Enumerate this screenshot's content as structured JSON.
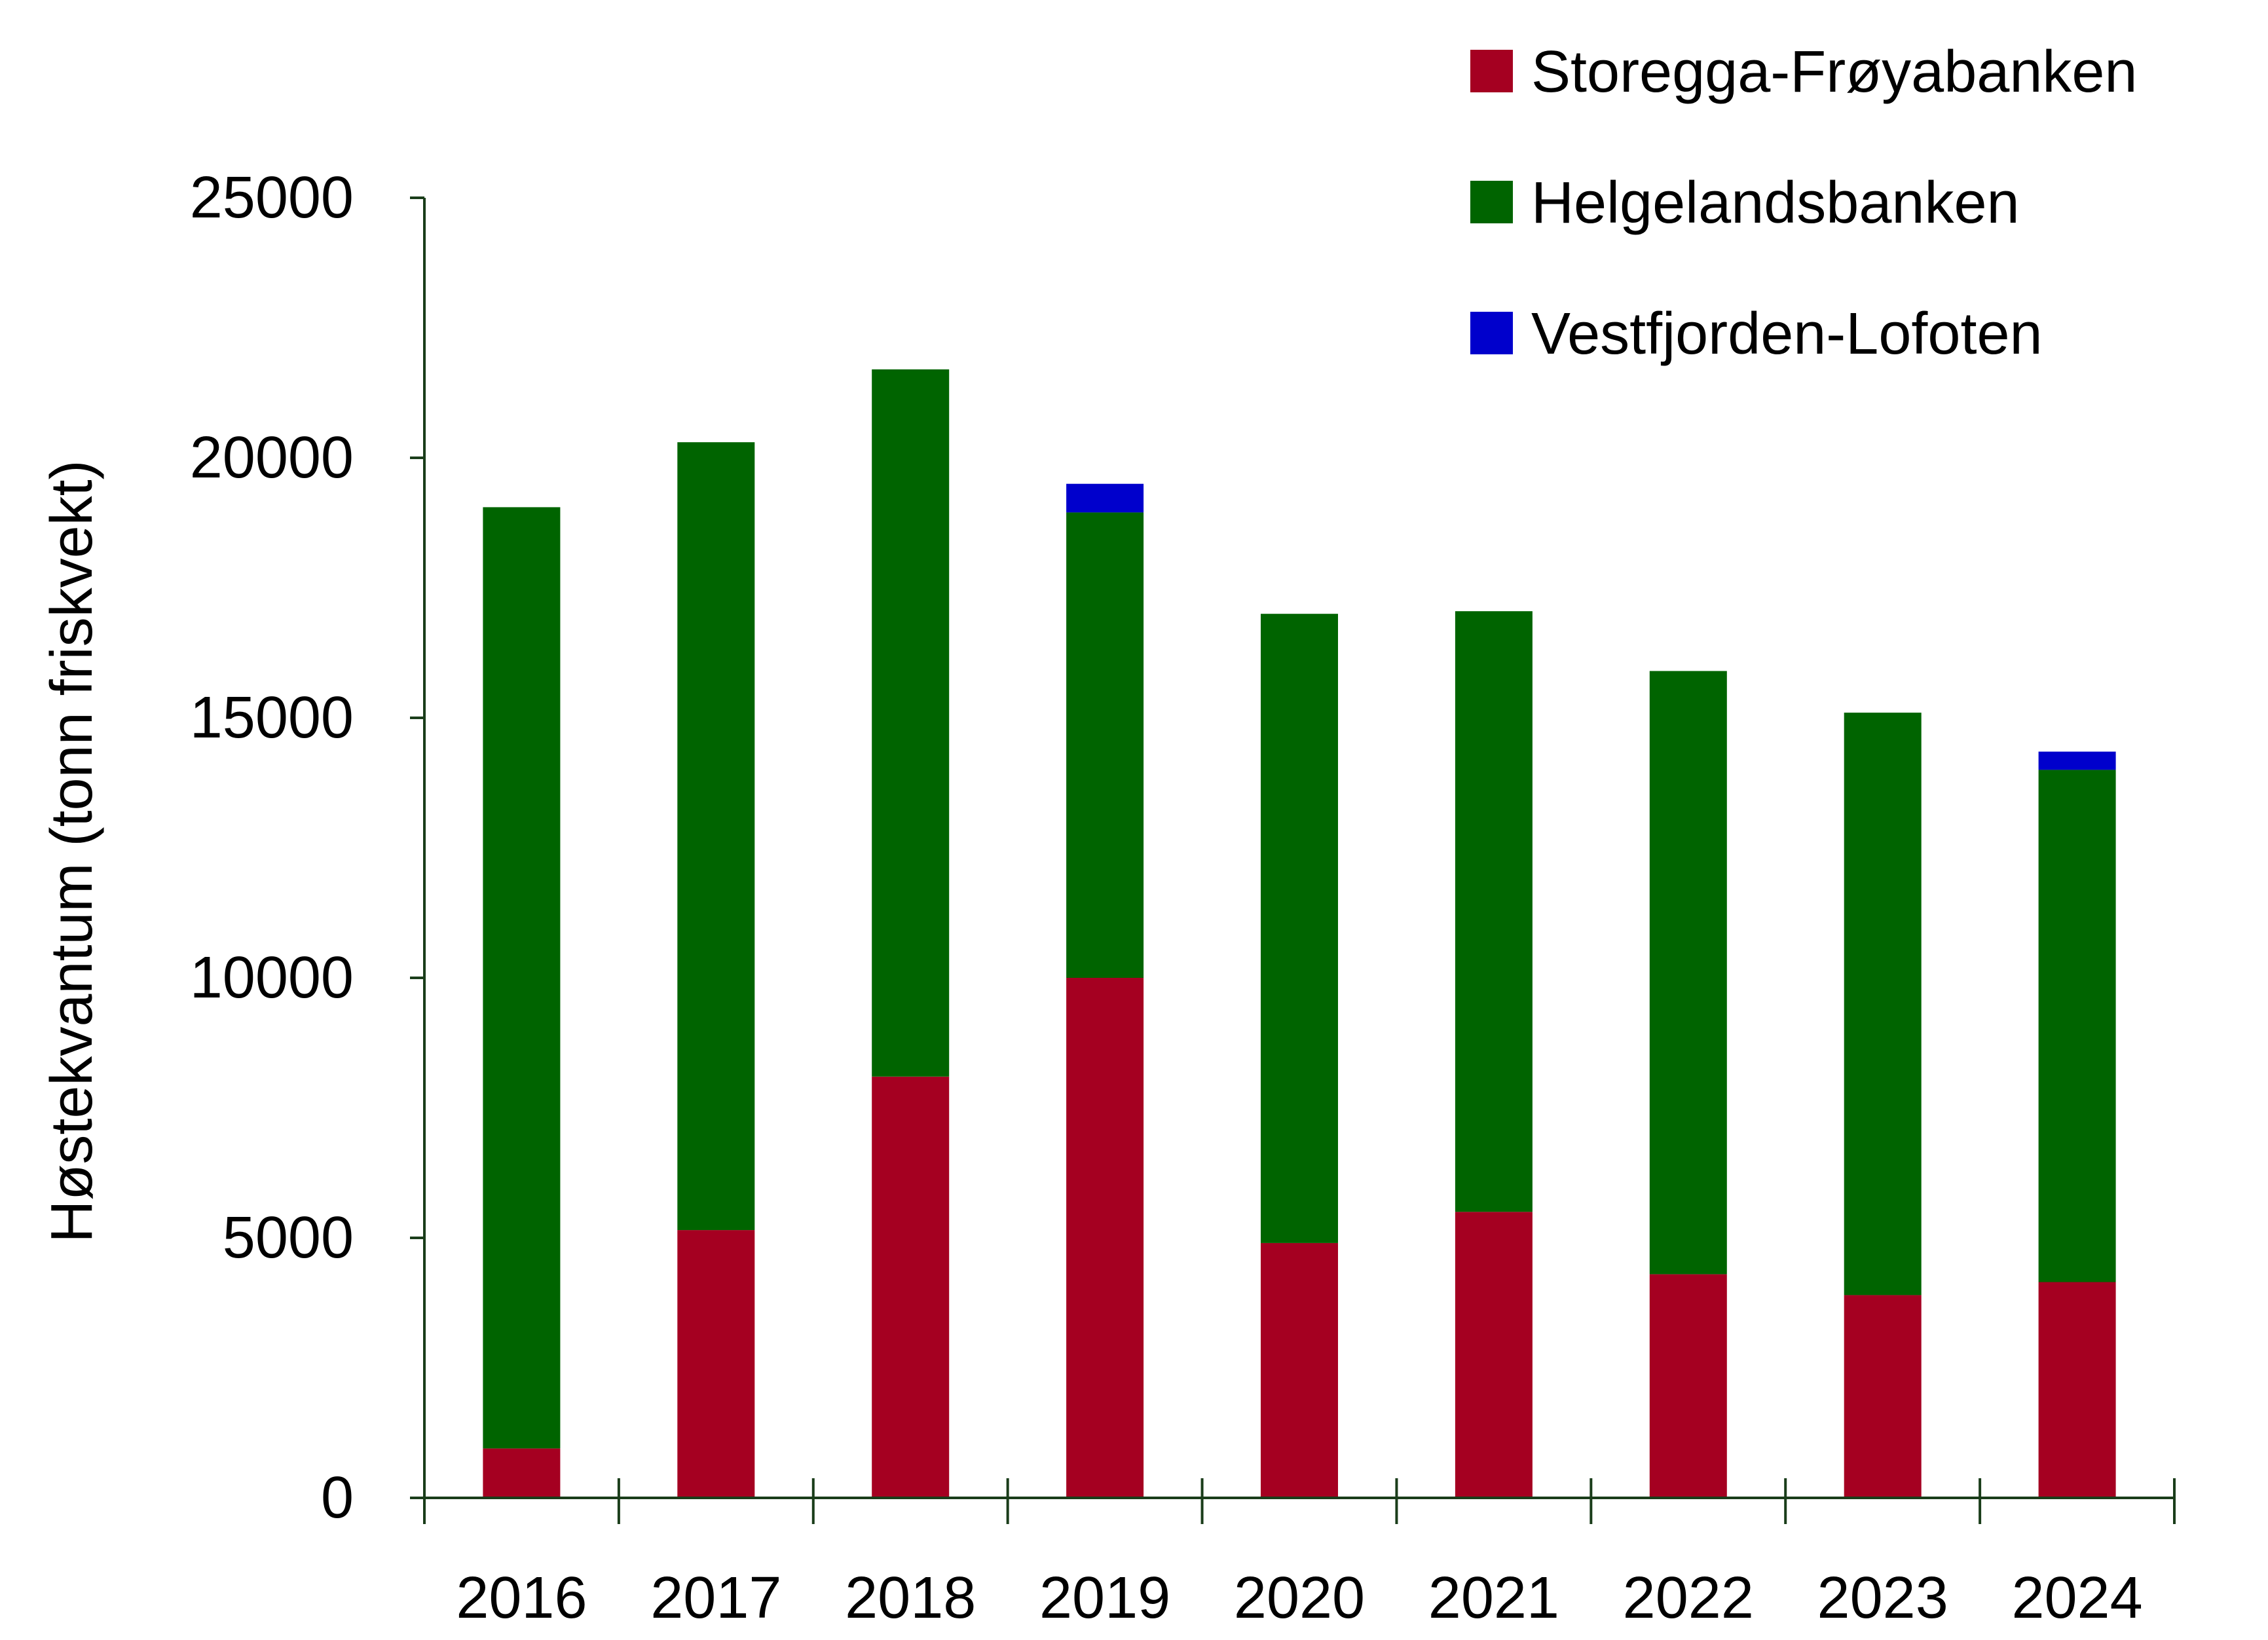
{
  "chart_data": {
    "type": "bar",
    "stacked": true,
    "title": "",
    "xlabel": "",
    "ylabel": "Høstekvantum  (tonn friskvekt)",
    "ylim": [
      0,
      25000
    ],
    "yticks": [
      "0",
      "5000",
      "10000",
      "15000",
      "20000",
      "25000"
    ],
    "categories": [
      "2016",
      "2017",
      "2018",
      "2019",
      "2020",
      "2021",
      "2022",
      "2023",
      "2024"
    ],
    "legend_position": "top-right",
    "series": [
      {
        "name": "Storegga-Frøyabanken",
        "color": "#a50021",
        "values": [
          950,
          5150,
          8100,
          10000,
          4900,
          5500,
          4300,
          3900,
          4150
        ]
      },
      {
        "name": "Helgelandsbanken",
        "color": "#006400",
        "values": [
          18100,
          15150,
          13600,
          8950,
          12100,
          11550,
          11600,
          11200,
          9850
        ]
      },
      {
        "name": "Vestfjorden-Lofoten",
        "color": "#0000cc",
        "values": [
          0,
          0,
          0,
          550,
          0,
          0,
          0,
          0,
          350
        ]
      }
    ],
    "axis_color": "#1a3d1a"
  }
}
